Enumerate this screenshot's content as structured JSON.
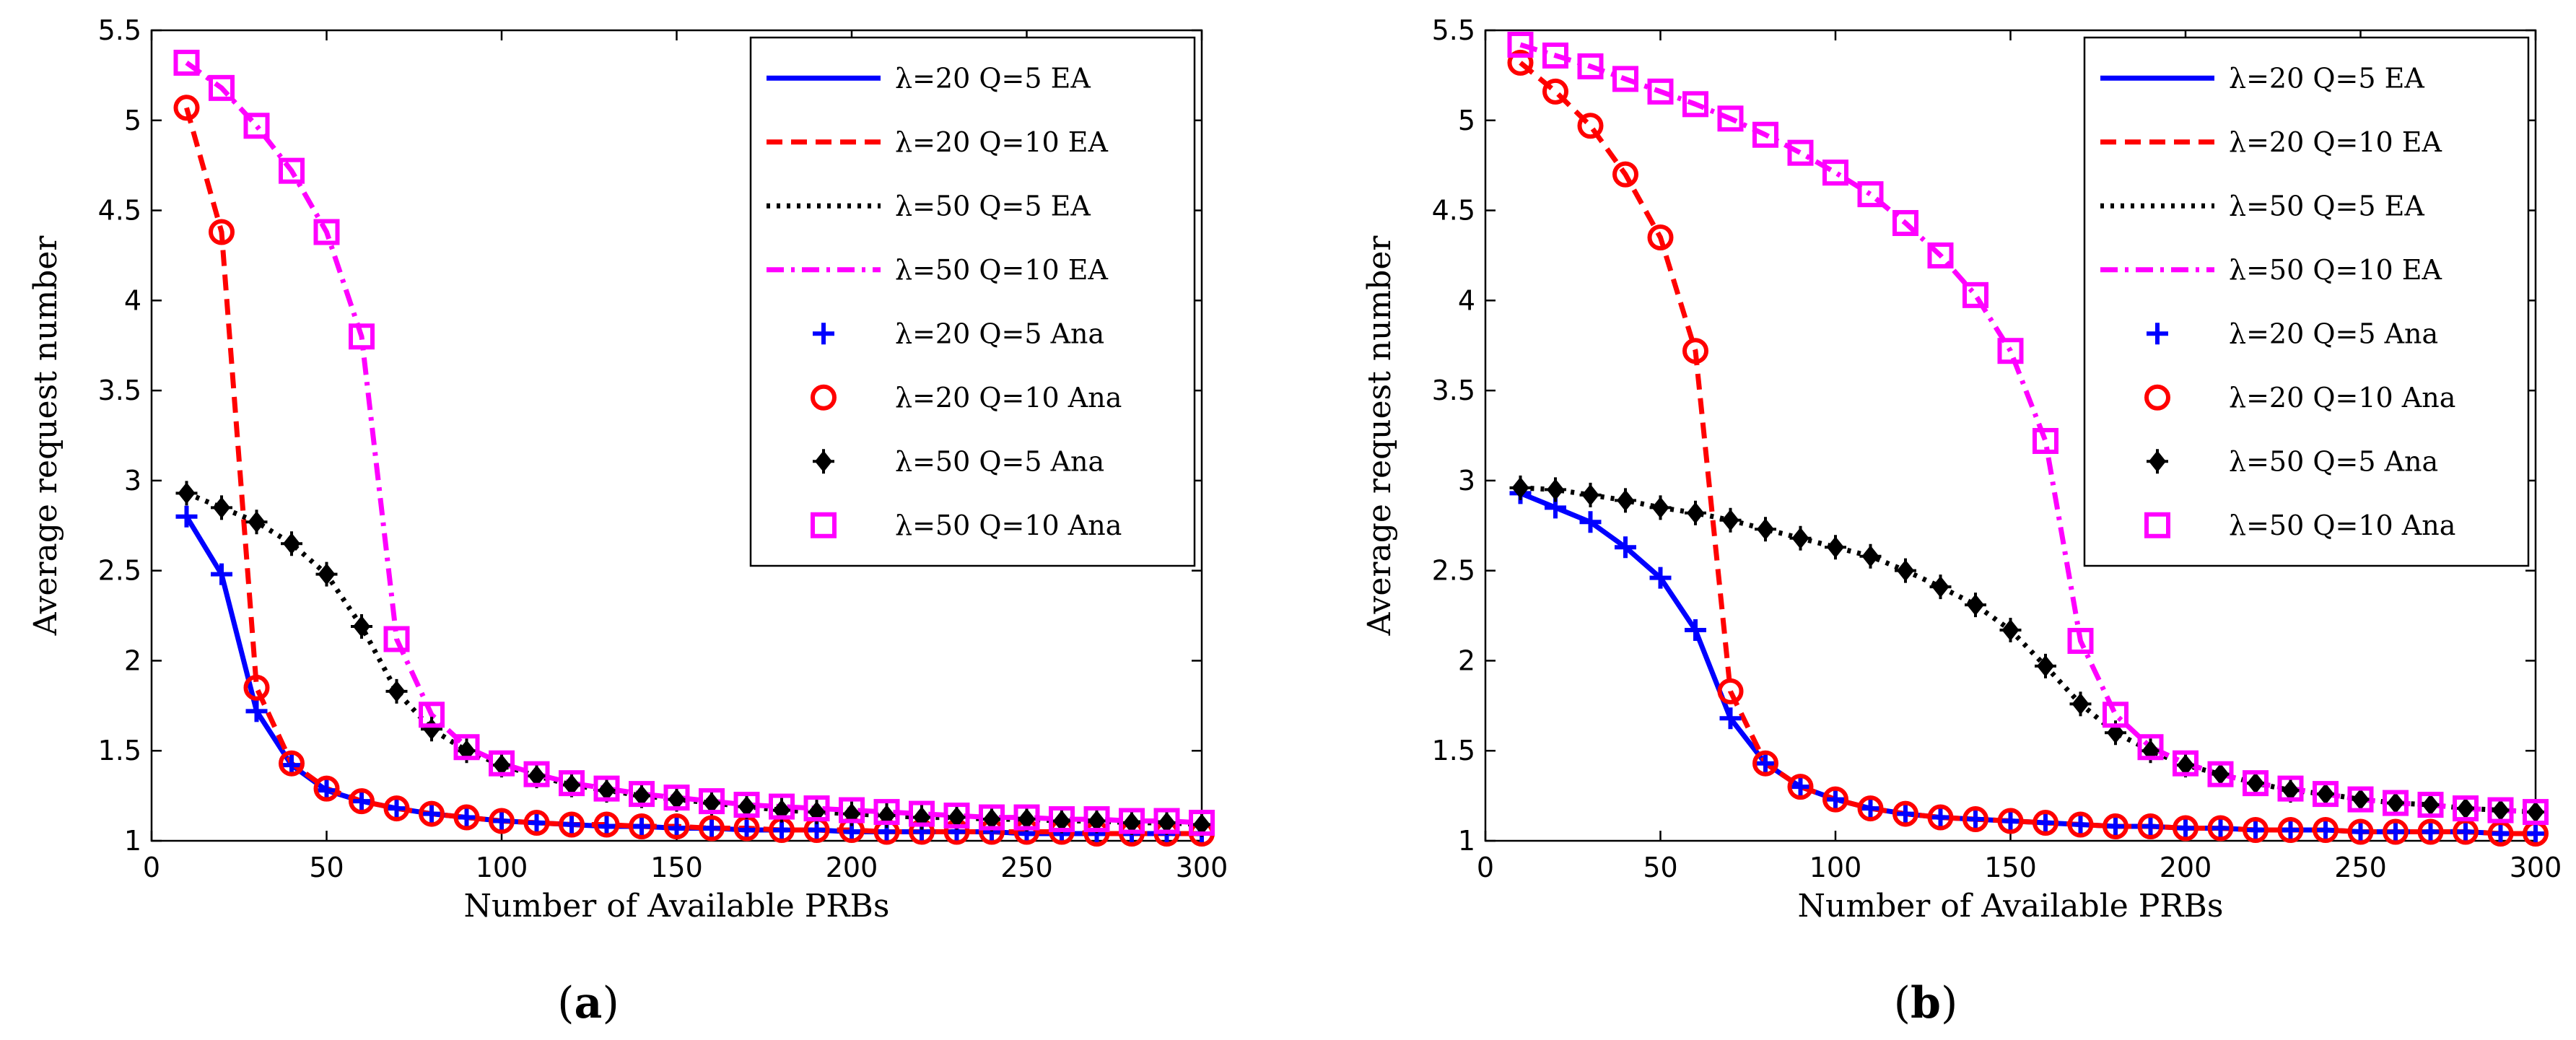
{
  "chart_data": [
    {
      "type": "line",
      "panel_label": "(a)",
      "panel_letter": "a",
      "xlabel": "Number of Available PRBs",
      "ylabel": "Average request number",
      "xlim": [
        0,
        300
      ],
      "ylim": [
        1,
        5.5
      ],
      "xticks": [
        0,
        50,
        100,
        150,
        200,
        250,
        300
      ],
      "yticks": [
        1,
        1.5,
        2,
        2.5,
        3,
        3.5,
        4,
        4.5,
        5,
        5.5
      ],
      "legend_position": "top-right",
      "x": [
        10,
        20,
        30,
        40,
        50,
        60,
        70,
        80,
        90,
        100,
        110,
        120,
        130,
        140,
        150,
        160,
        170,
        180,
        190,
        200,
        210,
        220,
        230,
        240,
        250,
        260,
        270,
        280,
        290,
        300
      ],
      "series": [
        {
          "name": "λ=20 Q=5 EA",
          "kind": "line",
          "style": "solid",
          "color": "#0000ff",
          "values": [
            2.8,
            2.48,
            1.72,
            1.42,
            1.28,
            1.22,
            1.18,
            1.15,
            1.13,
            1.11,
            1.1,
            1.09,
            1.08,
            1.08,
            1.07,
            1.07,
            1.06,
            1.06,
            1.06,
            1.05,
            1.05,
            1.05,
            1.05,
            1.05,
            1.04,
            1.04,
            1.04,
            1.04,
            1.04,
            1.04
          ]
        },
        {
          "name": "λ=20 Q=10 EA",
          "kind": "line",
          "style": "dashed",
          "color": "#ff0000",
          "values": [
            5.07,
            4.38,
            1.85,
            1.43,
            1.29,
            1.22,
            1.18,
            1.15,
            1.13,
            1.11,
            1.1,
            1.09,
            1.09,
            1.08,
            1.08,
            1.07,
            1.07,
            1.06,
            1.06,
            1.06,
            1.05,
            1.05,
            1.05,
            1.05,
            1.05,
            1.05,
            1.04,
            1.04,
            1.04,
            1.04
          ]
        },
        {
          "name": "λ=50 Q=5 EA",
          "kind": "line",
          "style": "dotted",
          "color": "#000000",
          "values": [
            2.93,
            2.85,
            2.77,
            2.65,
            2.48,
            2.19,
            1.83,
            1.62,
            1.5,
            1.42,
            1.36,
            1.31,
            1.28,
            1.25,
            1.23,
            1.21,
            1.19,
            1.17,
            1.16,
            1.15,
            1.14,
            1.13,
            1.13,
            1.12,
            1.12,
            1.11,
            1.11,
            1.1,
            1.1,
            1.09
          ]
        },
        {
          "name": "λ=50 Q=10 EA",
          "kind": "line",
          "style": "dashdot",
          "color": "#ff00ff",
          "values": [
            5.32,
            5.18,
            4.97,
            4.72,
            4.38,
            3.8,
            2.12,
            1.7,
            1.52,
            1.43,
            1.37,
            1.32,
            1.29,
            1.26,
            1.24,
            1.22,
            1.2,
            1.19,
            1.18,
            1.17,
            1.16,
            1.15,
            1.14,
            1.13,
            1.13,
            1.12,
            1.12,
            1.11,
            1.11,
            1.1
          ]
        },
        {
          "name": "λ=20 Q=5 Ana",
          "kind": "marker",
          "marker": "plus",
          "color": "#0000ff",
          "values": [
            2.8,
            2.48,
            1.72,
            1.42,
            1.28,
            1.22,
            1.18,
            1.15,
            1.13,
            1.11,
            1.1,
            1.09,
            1.08,
            1.08,
            1.07,
            1.07,
            1.06,
            1.06,
            1.06,
            1.05,
            1.05,
            1.05,
            1.05,
            1.05,
            1.04,
            1.04,
            1.04,
            1.04,
            1.04,
            1.04
          ]
        },
        {
          "name": "λ=20 Q=10 Ana",
          "kind": "marker",
          "marker": "circle",
          "color": "#ff0000",
          "values": [
            5.07,
            4.38,
            1.85,
            1.43,
            1.29,
            1.22,
            1.18,
            1.15,
            1.13,
            1.11,
            1.1,
            1.09,
            1.09,
            1.08,
            1.08,
            1.07,
            1.07,
            1.06,
            1.06,
            1.06,
            1.05,
            1.05,
            1.05,
            1.05,
            1.05,
            1.05,
            1.04,
            1.04,
            1.04,
            1.04
          ]
        },
        {
          "name": "λ=50 Q=5 Ana",
          "kind": "marker",
          "marker": "diamond-plus",
          "color": "#000000",
          "values": [
            2.93,
            2.85,
            2.77,
            2.65,
            2.48,
            2.19,
            1.83,
            1.62,
            1.5,
            1.42,
            1.36,
            1.31,
            1.28,
            1.25,
            1.23,
            1.21,
            1.19,
            1.17,
            1.16,
            1.15,
            1.14,
            1.13,
            1.13,
            1.12,
            1.12,
            1.11,
            1.11,
            1.1,
            1.1,
            1.09
          ]
        },
        {
          "name": "λ=50 Q=10 Ana",
          "kind": "marker",
          "marker": "square",
          "color": "#ff00ff",
          "values": [
            5.32,
            5.18,
            4.97,
            4.72,
            4.38,
            3.8,
            2.12,
            1.7,
            1.52,
            1.43,
            1.37,
            1.32,
            1.29,
            1.26,
            1.24,
            1.22,
            1.2,
            1.19,
            1.18,
            1.17,
            1.16,
            1.15,
            1.14,
            1.13,
            1.13,
            1.12,
            1.12,
            1.11,
            1.11,
            1.1
          ]
        }
      ]
    },
    {
      "type": "line",
      "panel_label": "(b)",
      "panel_letter": "b",
      "xlabel": "Number of Available PRBs",
      "ylabel": "Average request number",
      "xlim": [
        0,
        300
      ],
      "ylim": [
        1,
        5.5
      ],
      "xticks": [
        0,
        50,
        100,
        150,
        200,
        250,
        300
      ],
      "yticks": [
        1,
        1.5,
        2,
        2.5,
        3,
        3.5,
        4,
        4.5,
        5,
        5.5
      ],
      "legend_position": "top-right",
      "x": [
        10,
        20,
        30,
        40,
        50,
        60,
        70,
        80,
        90,
        100,
        110,
        120,
        130,
        140,
        150,
        160,
        170,
        180,
        190,
        200,
        210,
        220,
        230,
        240,
        250,
        260,
        270,
        280,
        290,
        300
      ],
      "series": [
        {
          "name": "λ=20 Q=5 EA",
          "kind": "line",
          "style": "solid",
          "color": "#0000ff",
          "values": [
            2.93,
            2.85,
            2.77,
            2.63,
            2.46,
            2.17,
            1.68,
            1.43,
            1.3,
            1.23,
            1.18,
            1.15,
            1.13,
            1.12,
            1.11,
            1.1,
            1.09,
            1.08,
            1.08,
            1.07,
            1.07,
            1.06,
            1.06,
            1.06,
            1.05,
            1.05,
            1.05,
            1.05,
            1.04,
            1.04
          ]
        },
        {
          "name": "λ=20 Q=10 EA",
          "kind": "line",
          "style": "dashed",
          "color": "#ff0000",
          "values": [
            5.32,
            5.16,
            4.97,
            4.7,
            4.35,
            3.72,
            1.83,
            1.43,
            1.3,
            1.23,
            1.18,
            1.15,
            1.13,
            1.12,
            1.11,
            1.1,
            1.09,
            1.08,
            1.08,
            1.07,
            1.07,
            1.06,
            1.06,
            1.06,
            1.05,
            1.05,
            1.05,
            1.05,
            1.04,
            1.04
          ]
        },
        {
          "name": "λ=50 Q=5 EA",
          "kind": "line",
          "style": "dotted",
          "color": "#000000",
          "values": [
            2.96,
            2.95,
            2.92,
            2.89,
            2.85,
            2.82,
            2.78,
            2.73,
            2.68,
            2.63,
            2.58,
            2.5,
            2.41,
            2.31,
            2.17,
            1.97,
            1.76,
            1.6,
            1.5,
            1.42,
            1.37,
            1.32,
            1.28,
            1.26,
            1.23,
            1.21,
            1.2,
            1.18,
            1.17,
            1.16
          ]
        },
        {
          "name": "λ=50 Q=10 EA",
          "kind": "line",
          "style": "dashdot",
          "color": "#ff00ff",
          "values": [
            5.42,
            5.36,
            5.3,
            5.23,
            5.16,
            5.09,
            5.01,
            4.92,
            4.82,
            4.71,
            4.59,
            4.43,
            4.25,
            4.03,
            3.72,
            3.22,
            2.11,
            1.7,
            1.52,
            1.43,
            1.37,
            1.32,
            1.29,
            1.26,
            1.23,
            1.21,
            1.2,
            1.18,
            1.17,
            1.16
          ]
        },
        {
          "name": "λ=20 Q=5 Ana",
          "kind": "marker",
          "marker": "plus",
          "color": "#0000ff",
          "values": [
            2.93,
            2.85,
            2.77,
            2.63,
            2.46,
            2.17,
            1.68,
            1.43,
            1.3,
            1.23,
            1.18,
            1.15,
            1.13,
            1.12,
            1.11,
            1.1,
            1.09,
            1.08,
            1.08,
            1.07,
            1.07,
            1.06,
            1.06,
            1.06,
            1.05,
            1.05,
            1.05,
            1.05,
            1.04,
            1.04
          ]
        },
        {
          "name": "λ=20 Q=10 Ana",
          "kind": "marker",
          "marker": "circle",
          "color": "#ff0000",
          "values": [
            5.32,
            5.16,
            4.97,
            4.7,
            4.35,
            3.72,
            1.83,
            1.43,
            1.3,
            1.23,
            1.18,
            1.15,
            1.13,
            1.12,
            1.11,
            1.1,
            1.09,
            1.08,
            1.08,
            1.07,
            1.07,
            1.06,
            1.06,
            1.06,
            1.05,
            1.05,
            1.05,
            1.05,
            1.04,
            1.04
          ]
        },
        {
          "name": "λ=50 Q=5 Ana",
          "kind": "marker",
          "marker": "diamond-plus",
          "color": "#000000",
          "values": [
            2.96,
            2.95,
            2.92,
            2.89,
            2.85,
            2.82,
            2.78,
            2.73,
            2.68,
            2.63,
            2.58,
            2.5,
            2.41,
            2.31,
            2.17,
            1.97,
            1.76,
            1.6,
            1.5,
            1.42,
            1.37,
            1.32,
            1.28,
            1.26,
            1.23,
            1.21,
            1.2,
            1.18,
            1.17,
            1.16
          ]
        },
        {
          "name": "λ=50 Q=10 Ana",
          "kind": "marker",
          "marker": "square",
          "color": "#ff00ff",
          "values": [
            5.42,
            5.36,
            5.3,
            5.23,
            5.16,
            5.09,
            5.01,
            4.92,
            4.82,
            4.71,
            4.59,
            4.43,
            4.25,
            4.03,
            3.72,
            3.22,
            2.11,
            1.7,
            1.52,
            1.43,
            1.37,
            1.32,
            1.29,
            1.26,
            1.23,
            1.21,
            1.2,
            1.18,
            1.17,
            1.16
          ]
        }
      ]
    }
  ]
}
